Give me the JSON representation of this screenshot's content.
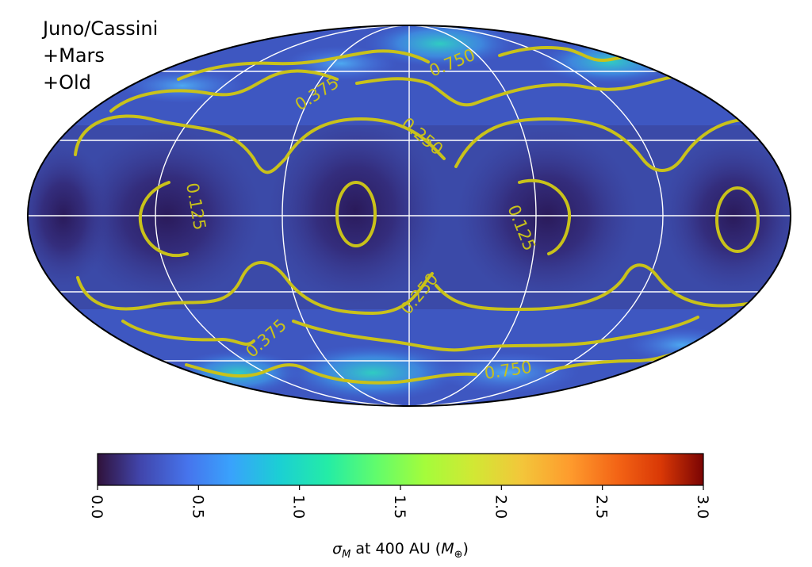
{
  "legend_lines": [
    "Juno/Cassini",
    "+Mars",
    "+Old"
  ],
  "chart_data": {
    "type": "heatmap",
    "projection": "mollweide",
    "grid": true,
    "colormap": "turbo",
    "colorbar": {
      "range": [
        0.0,
        3.0
      ],
      "ticks": [
        "0.0",
        "0.5",
        "1.0",
        "1.5",
        "2.0",
        "2.5",
        "3.0"
      ],
      "label_main": "σ",
      "label_sub": "M",
      "label_mid": " at 400 AU (",
      "label_unit": "M",
      "label_unit_sub": "⊕",
      "label_end": ")"
    },
    "contour_levels": [
      0.125,
      0.25,
      0.375,
      0.75
    ],
    "contour_labels": [
      {
        "text": "0.750",
        "id": "upper-right"
      },
      {
        "text": "0.375",
        "id": "upper-left"
      },
      {
        "text": "0.250",
        "id": "upper-mid"
      },
      {
        "text": "0.125",
        "id": "left"
      },
      {
        "text": "0.125",
        "id": "right"
      },
      {
        "text": "0.250",
        "id": "lower-mid"
      },
      {
        "text": "0.375",
        "id": "lower-left"
      },
      {
        "text": "0.750",
        "id": "lower-right"
      }
    ],
    "colors": {
      "contour": "#c9c21a",
      "grid": "#ffffff",
      "low": "#30123b",
      "mid": "#4a6fe3",
      "high": "#7a0403"
    }
  }
}
